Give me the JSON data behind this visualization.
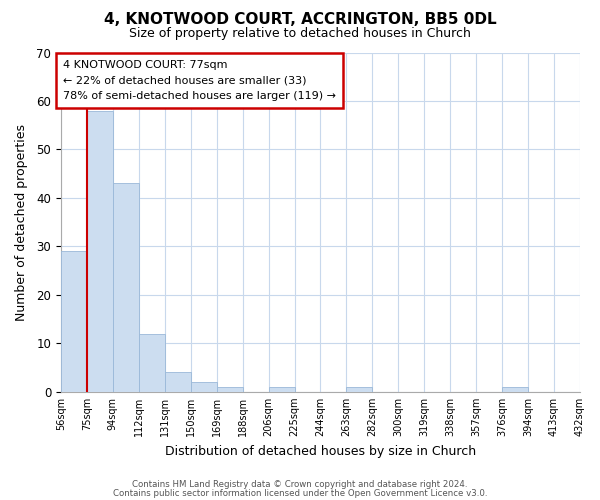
{
  "title": "4, KNOTWOOD COURT, ACCRINGTON, BB5 0DL",
  "subtitle": "Size of property relative to detached houses in Church",
  "xlabel": "Distribution of detached houses by size in Church",
  "ylabel": "Number of detached properties",
  "bar_values": [
    29,
    58,
    43,
    12,
    4,
    2,
    1,
    0,
    1,
    0,
    0,
    1,
    0,
    0,
    0,
    0,
    0,
    1,
    0,
    0
  ],
  "bar_labels": [
    "56sqm",
    "75sqm",
    "94sqm",
    "112sqm",
    "131sqm",
    "150sqm",
    "169sqm",
    "188sqm",
    "206sqm",
    "225sqm",
    "244sqm",
    "263sqm",
    "282sqm",
    "300sqm",
    "319sqm",
    "338sqm",
    "357sqm",
    "376sqm",
    "394sqm",
    "413sqm",
    "432sqm"
  ],
  "bar_color": "#ccddf0",
  "bar_edge_color": "#9ab8d8",
  "ylim": [
    0,
    70
  ],
  "yticks": [
    0,
    10,
    20,
    30,
    40,
    50,
    60,
    70
  ],
  "property_line_color": "#cc0000",
  "annotation_title": "4 KNOTWOOD COURT: 77sqm",
  "annotation_line1": "← 22% of detached houses are smaller (33)",
  "annotation_line2": "78% of semi-detached houses are larger (119) →",
  "annotation_box_color": "#ffffff",
  "annotation_box_edge": "#cc0000",
  "footer1": "Contains HM Land Registry data © Crown copyright and database right 2024.",
  "footer2": "Contains public sector information licensed under the Open Government Licence v3.0.",
  "background_color": "#ffffff",
  "grid_color": "#c8d8ec"
}
